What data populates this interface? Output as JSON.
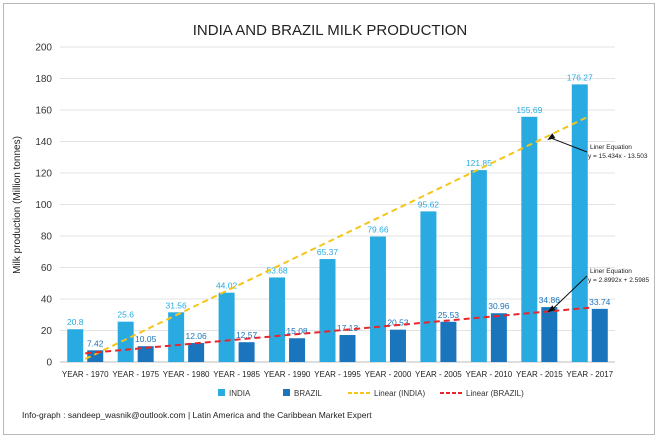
{
  "chart_data": {
    "type": "bar",
    "title": "INDIA AND BRAZIL MILK PRODUCTION",
    "xlabel": "",
    "ylabel": "Milk production (Million tonnes)",
    "ylim": [
      0,
      200
    ],
    "yticks": [
      0,
      20,
      40,
      60,
      80,
      100,
      120,
      140,
      160,
      180,
      200
    ],
    "grid": true,
    "legend_position": "bottom",
    "categories": [
      "YEAR - 1970",
      "YEAR - 1975",
      "YEAR - 1980",
      "YEAR - 1985",
      "YEAR - 1990",
      "YEAR - 1995",
      "YEAR - 2000",
      "YEAR - 2005",
      "YEAR - 2010",
      "YEAR - 2015",
      "YEAR - 2017"
    ],
    "series": [
      {
        "name": "INDIA",
        "color": "#29abe2",
        "values": [
          20.8,
          25.6,
          31.56,
          44.02,
          53.68,
          65.37,
          79.66,
          95.62,
          121.85,
          155.69,
          176.27
        ],
        "labels": [
          "20.8",
          "25.6",
          "31.56",
          "44.02",
          "53.68",
          "65.37",
          "79.66",
          "95.62",
          "121.85",
          "155.69",
          "176.27"
        ]
      },
      {
        "name": "BRAZIL",
        "color": "#1a75bc",
        "values": [
          7.42,
          10.05,
          12.06,
          12.57,
          15.08,
          17.13,
          20.53,
          25.53,
          30.96,
          34.86,
          33.74
        ],
        "labels": [
          "7.42",
          "10.05",
          "12.06",
          "12.57",
          "15.08",
          "17.13",
          "20.53",
          "25.53",
          "30.96",
          "34.86",
          "33.74"
        ]
      }
    ],
    "trendlines": [
      {
        "name": "Linear (INDIA)",
        "color": "#f5c518",
        "slope": 15.434,
        "intercept": -13.503,
        "annotation_title": "Liner Equation",
        "annotation_text": "y = 15.434x - 13.503"
      },
      {
        "name": "Linear (BRAZIL)",
        "color": "#e8262b",
        "slope": 2.8992,
        "intercept": 2.5985,
        "annotation_title": "Liner Equation",
        "annotation_text": "y = 2.8992x + 2.5985"
      }
    ]
  },
  "footer": {
    "credit": "Info-graph : sandeep_wasnik@outlook.com | Latin America and the Caribbean Market Expert"
  }
}
